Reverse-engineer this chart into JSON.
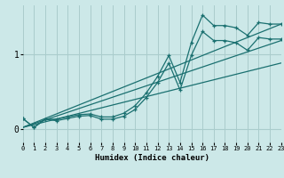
{
  "xlabel": "Humidex (Indice chaleur)",
  "background_color": "#cce8e8",
  "line_color": "#1a7070",
  "grid_color": "#aacccc",
  "x_ticks": [
    0,
    1,
    2,
    3,
    4,
    5,
    6,
    7,
    8,
    9,
    10,
    11,
    12,
    13,
    14,
    15,
    16,
    17,
    18,
    19,
    20,
    21,
    22,
    23
  ],
  "y_ticks": [
    0,
    1
  ],
  "y_tick_labels": [
    "0",
    "1"
  ],
  "xlim": [
    0,
    23
  ],
  "ylim": [
    -0.18,
    1.65
  ],
  "series1_x": [
    0,
    1,
    2,
    3,
    4,
    5,
    6,
    7,
    8,
    9,
    10,
    11,
    12,
    13,
    14,
    15,
    16,
    17,
    18,
    19,
    20,
    21,
    22,
    23
  ],
  "series1_y": [
    0.14,
    0.02,
    0.13,
    0.13,
    0.16,
    0.19,
    0.2,
    0.16,
    0.16,
    0.21,
    0.31,
    0.48,
    0.7,
    0.98,
    0.62,
    1.15,
    1.52,
    1.38,
    1.38,
    1.35,
    1.25,
    1.42,
    1.4,
    1.4
  ],
  "series2_x": [
    0,
    1,
    2,
    3,
    4,
    5,
    6,
    7,
    8,
    9,
    10,
    11,
    12,
    13,
    14,
    15,
    16,
    17,
    18,
    19,
    20,
    21,
    22,
    23
  ],
  "series2_y": [
    0.14,
    0.02,
    0.13,
    0.11,
    0.14,
    0.17,
    0.18,
    0.13,
    0.13,
    0.17,
    0.26,
    0.42,
    0.62,
    0.88,
    0.52,
    0.98,
    1.3,
    1.18,
    1.18,
    1.15,
    1.05,
    1.22,
    1.2,
    1.2
  ],
  "line1_x": [
    0,
    23
  ],
  "line1_y": [
    0.02,
    1.4
  ],
  "line2_x": [
    0,
    23
  ],
  "line2_y": [
    0.02,
    1.18
  ],
  "line3_x": [
    0,
    23
  ],
  "line3_y": [
    0.02,
    0.88
  ]
}
